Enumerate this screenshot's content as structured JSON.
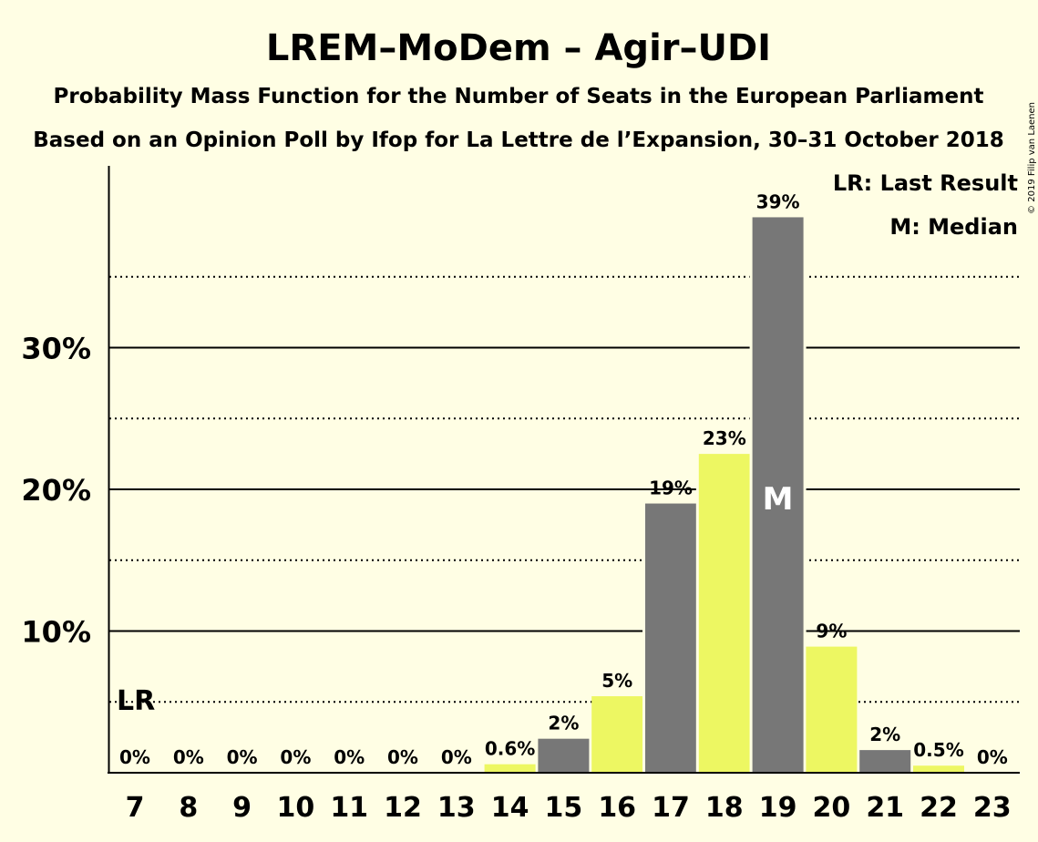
{
  "chart_data": {
    "type": "bar",
    "title": "LREM–MoDem – Agir–UDI",
    "subtitle": "Probability Mass Function for the Number of Seats in the European Parliament",
    "subtitle2": "Based on an Opinion Poll by Ifop for La Lettre de l’Expansion, 30–31 October 2018",
    "copyright": "© 2019 Filip van Laenen",
    "categories": [
      "7",
      "8",
      "9",
      "10",
      "11",
      "12",
      "13",
      "14",
      "15",
      "16",
      "17",
      "18",
      "19",
      "20",
      "21",
      "22",
      "23"
    ],
    "values": [
      0,
      0,
      0,
      0,
      0,
      0,
      0,
      0.6,
      2.4,
      5.4,
      19,
      22.5,
      39.2,
      8.9,
      1.6,
      0.5,
      0
    ],
    "data_labels": [
      "0%",
      "0%",
      "0%",
      "0%",
      "0%",
      "0%",
      "0%",
      "0.6%",
      "2%",
      "5%",
      "19%",
      "23%",
      "39%",
      "9%",
      "2%",
      "0.5%",
      "0%"
    ],
    "y_ticks": [
      {
        "value": 10,
        "label": "10%"
      },
      {
        "value": 20,
        "label": "20%"
      },
      {
        "value": 30,
        "label": "30%"
      }
    ],
    "minor_gridlines": [
      5,
      15,
      25,
      35
    ],
    "ylim": [
      0,
      43
    ],
    "colors": {
      "background": "#FFFEE4",
      "bar_dark": "#777777",
      "bar_light": "#EDF762",
      "text": "#000000"
    },
    "last_result": {
      "category": "7",
      "label": "LR"
    },
    "median": {
      "category": "19",
      "label": "M"
    },
    "legend": [
      "LR: Last Result",
      "M: Median"
    ],
    "legend_position": "top-right"
  }
}
